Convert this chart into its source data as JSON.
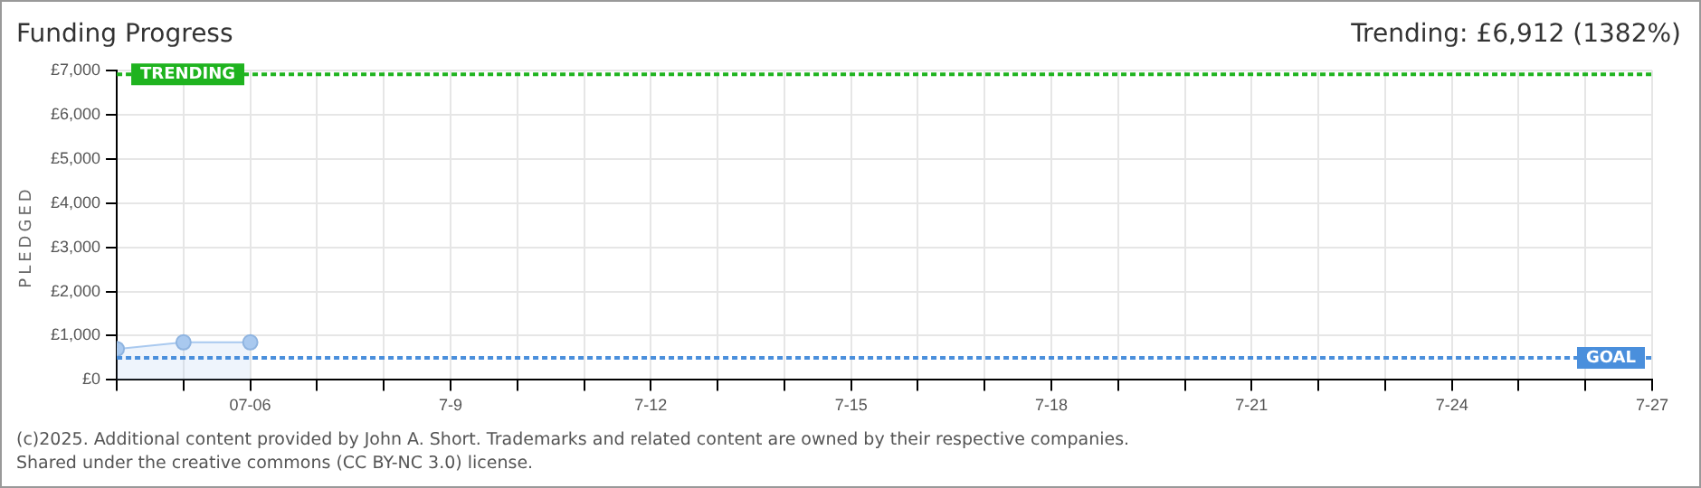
{
  "chart_data": {
    "type": "area",
    "title": "Funding Progress",
    "subtitle": "Trending: £6,912 (1382%)",
    "ylabel": "PLEDGED",
    "x": [
      "--07-04",
      "--07-05",
      "--07-06"
    ],
    "series": [
      {
        "color": "#a9c9ef",
        "values": [
          700,
          850,
          850
        ]
      }
    ],
    "xlim": [
      "--07-04",
      "--07-27"
    ],
    "xticks": [
      {
        "value": "--07-04",
        "label": null
      },
      {
        "value": "--07-05",
        "label": null
      },
      {
        "value": "--07-06",
        "label": "07-06"
      },
      {
        "value": "--07-07",
        "label": null
      },
      {
        "value": "--07-08",
        "label": null
      },
      {
        "value": "--07-09",
        "label": "7-9"
      },
      {
        "value": "--07-10",
        "label": null
      },
      {
        "value": "--07-11",
        "label": null
      },
      {
        "value": "--07-12",
        "label": "7-12"
      },
      {
        "value": "--07-13",
        "label": null
      },
      {
        "value": "--07-14",
        "label": null
      },
      {
        "value": "--07-15",
        "label": "7-15"
      },
      {
        "value": "--07-16",
        "label": null
      },
      {
        "value": "--07-17",
        "label": null
      },
      {
        "value": "--07-18",
        "label": "7-18"
      },
      {
        "value": "--07-19",
        "label": null
      },
      {
        "value": "--07-20",
        "label": null
      },
      {
        "value": "--07-21",
        "label": "7-21"
      },
      {
        "value": "--07-22",
        "label": null
      },
      {
        "value": "--07-23",
        "label": null
      },
      {
        "value": "--07-24",
        "label": "7-24"
      },
      {
        "value": "--07-25",
        "label": null
      },
      {
        "value": "--07-26",
        "label": null
      },
      {
        "value": "--07-27",
        "label": "7-27"
      }
    ],
    "ylim": [
      0,
      7000
    ],
    "yticks": [
      {
        "value": 0,
        "label": "£0"
      },
      {
        "value": 1000,
        "label": "£1,000"
      },
      {
        "value": 2000,
        "label": "£2,000"
      },
      {
        "value": 3000,
        "label": "£3,000"
      },
      {
        "value": 4000,
        "label": "£4,000"
      },
      {
        "value": 5000,
        "label": "£5,000"
      },
      {
        "value": 6000,
        "label": "£6,000"
      },
      {
        "value": 7000,
        "label": "£7,000"
      }
    ],
    "ref_lines": [
      {
        "axis": "y",
        "value": 500,
        "label": "GOAL",
        "color": "#4a8fdc",
        "line_style": "dotted"
      },
      {
        "axis": "y",
        "value": 6912,
        "label": "TRENDING",
        "color": "#1fb31f",
        "line_style": "dotted"
      }
    ],
    "grid": true,
    "marker": "circle",
    "legend": false,
    "annotations": [
      "(c)2025. Additional content provided by John A. Short. Trademarks and related content are owned by their respective companies.",
      "Shared under the creative commons (CC BY-NC 3.0) license."
    ]
  }
}
